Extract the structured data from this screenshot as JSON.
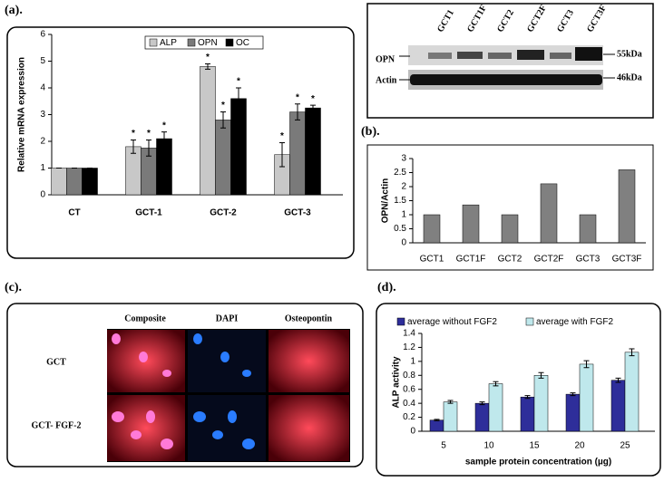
{
  "chart_data": [
    {
      "type": "bar",
      "panel_label": "(a).",
      "ylabel": "Relative mRNA expression",
      "categories": [
        "CT",
        "GCT-1",
        "GCT-2",
        "GCT-3"
      ],
      "series": [
        {
          "name": "ALP",
          "color": "#c8c8c8",
          "values": [
            1,
            1.8,
            4.8,
            1.5
          ],
          "errors": [
            0,
            0.25,
            0.1,
            0.45
          ],
          "markers": [
            null,
            "*",
            "*",
            "*"
          ]
        },
        {
          "name": "OPN",
          "color": "#7a7a7a",
          "values": [
            1,
            1.75,
            2.8,
            3.1
          ],
          "errors": [
            0,
            0.3,
            0.3,
            0.3
          ],
          "markers": [
            null,
            "*",
            "*",
            "*"
          ]
        },
        {
          "name": "OC",
          "color": "#000000",
          "values": [
            1,
            2.1,
            3.6,
            3.25
          ],
          "errors": [
            0,
            0.25,
            0.4,
            0.1
          ],
          "markers": [
            null,
            "*",
            "*",
            "*"
          ]
        }
      ],
      "ylim": [
        0,
        6
      ],
      "yticks": [
        0,
        1,
        2,
        3,
        4,
        5,
        6
      ],
      "legend": "top"
    },
    {
      "type": "bar",
      "panel_label": "(b).",
      "ylabel": "OPN/Actin",
      "categories": [
        "GCT1",
        "GCT1F",
        "GCT2",
        "GCT2F",
        "GCT3",
        "GCT3F"
      ],
      "values": [
        1,
        1.35,
        1,
        2.1,
        1,
        2.6
      ],
      "color": "#808080",
      "ylim": [
        0,
        3
      ],
      "yticks": [
        0,
        0.5,
        1,
        1.5,
        2,
        2.5,
        3
      ]
    },
    {
      "type": "bar",
      "panel_label": "(d).",
      "ylabel": "ALP activity",
      "xlabel": "sample protein concentration (µg)",
      "categories": [
        "5",
        "10",
        "15",
        "20",
        "25"
      ],
      "series": [
        {
          "name": "average without FGF2",
          "color": "#2e2e9a",
          "values": [
            0.16,
            0.4,
            0.49,
            0.53,
            0.73
          ],
          "errors": [
            0.01,
            0.02,
            0.02,
            0.02,
            0.03
          ]
        },
        {
          "name": "average with FGF2",
          "color": "#bfe8ec",
          "values": [
            0.42,
            0.68,
            0.8,
            0.96,
            1.13
          ],
          "errors": [
            0.02,
            0.03,
            0.04,
            0.05,
            0.05
          ]
        }
      ],
      "ylim": [
        0,
        1.4
      ],
      "yticks": [
        0,
        0.2,
        0.4,
        0.6,
        0.8,
        1,
        1.2,
        1.4
      ],
      "legend": "top"
    }
  ],
  "blot": {
    "lanes": [
      "GCT1",
      "GCT1F",
      "GCT2",
      "GCT2F",
      "GCT3",
      "GCT3F"
    ],
    "bands": [
      "OPN",
      "Actin"
    ],
    "sizes": [
      "55kDa",
      "46kDa"
    ]
  },
  "micrograph": {
    "panel_label": "(c).",
    "columns": [
      "Composite",
      "DAPI",
      "Osteopontin"
    ],
    "rows": [
      "GCT",
      "GCT- FGF-2"
    ]
  }
}
